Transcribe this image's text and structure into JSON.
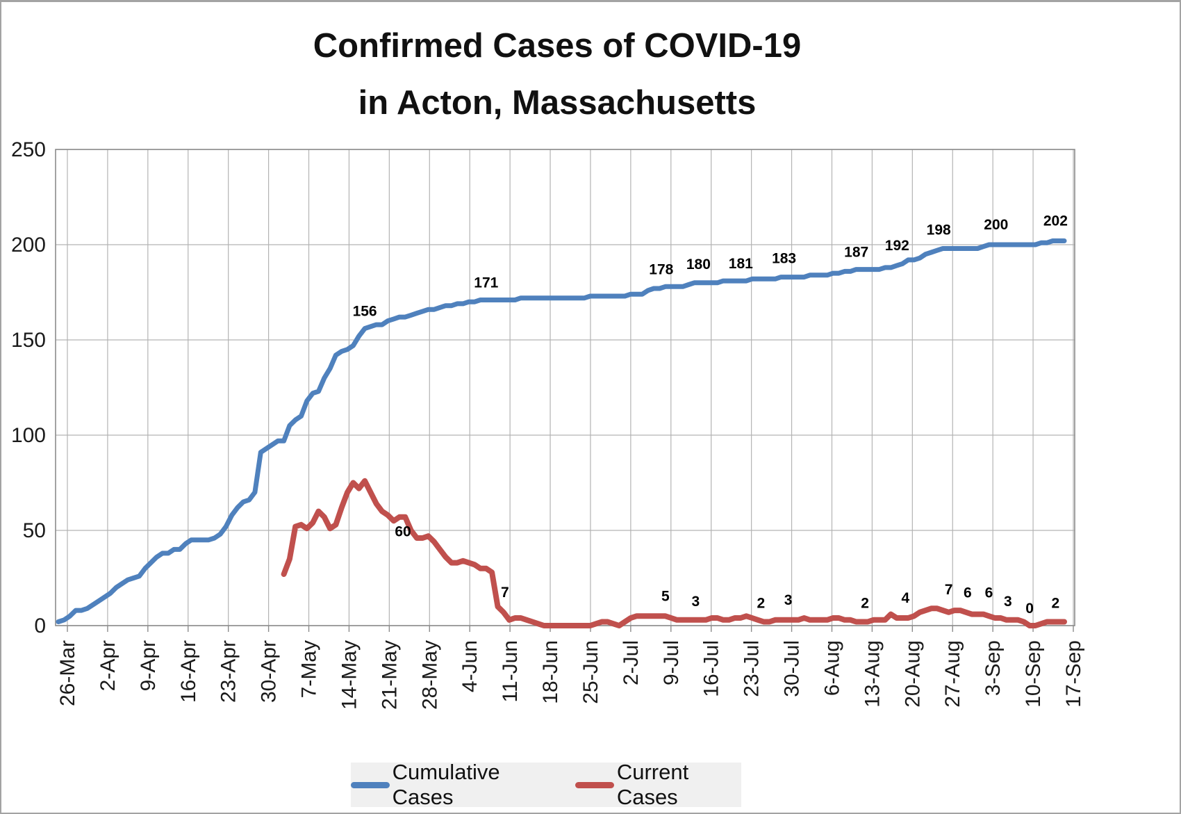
{
  "title_lines": [
    "Confirmed Cases of COVID-19",
    "in Acton, Massachusetts"
  ],
  "colors": {
    "cumulative": "#4F81BD",
    "current": "#C0504D",
    "gridline": "#b3b3b3",
    "plot_border": "#8c8c8c",
    "axis_text": "#1a1a1a",
    "data_label": "#000000",
    "legend_bg": "#f0f0f0"
  },
  "chart_data": {
    "type": "line",
    "title": "Confirmed Cases of COVID-19 in Acton, Massachusetts",
    "xlabel": "",
    "ylabel": "",
    "ylim": [
      0,
      250
    ],
    "y_ticks": [
      0,
      50,
      100,
      150,
      200,
      250
    ],
    "grid": true,
    "legend_position": "bottom",
    "x_interval": "daily",
    "x_start": "26-Mar",
    "x_end": "16-Sep",
    "x_tick_labels": [
      "26-Mar",
      "2-Apr",
      "9-Apr",
      "16-Apr",
      "23-Apr",
      "30-Apr",
      "7-May",
      "14-May",
      "21-May",
      "28-May",
      "4-Jun",
      "11-Jun",
      "18-Jun",
      "25-Jun",
      "2-Jul",
      "9-Jul",
      "16-Jul",
      "23-Jul",
      "30-Jul",
      "6-Aug",
      "13-Aug",
      "20-Aug",
      "27-Aug",
      "3-Sep",
      "10-Sep",
      "17-Sep"
    ],
    "series": [
      {
        "name": "Cumulative Cases",
        "color": "#4F81BD",
        "stroke_width": 7,
        "start_day": 0,
        "values": [
          2,
          3,
          5,
          8,
          8,
          9,
          11,
          13,
          15,
          17,
          20,
          22,
          24,
          25,
          26,
          30,
          33,
          36,
          38,
          38,
          40,
          40,
          43,
          45,
          45,
          45,
          45,
          46,
          48,
          52,
          58,
          62,
          65,
          66,
          70,
          91,
          93,
          95,
          97,
          97,
          105,
          108,
          110,
          118,
          122,
          123,
          130,
          135,
          142,
          144,
          145,
          147,
          152,
          156,
          157,
          158,
          158,
          160,
          161,
          162,
          162,
          163,
          164,
          165,
          166,
          166,
          167,
          168,
          168,
          169,
          169,
          170,
          170,
          171,
          171,
          171,
          171,
          171,
          171,
          171,
          172,
          172,
          172,
          172,
          172,
          172,
          172,
          172,
          172,
          172,
          172,
          172,
          173,
          173,
          173,
          173,
          173,
          173,
          173,
          174,
          174,
          174,
          176,
          177,
          177,
          178,
          178,
          178,
          178,
          179,
          180,
          180,
          180,
          180,
          180,
          181,
          181,
          181,
          181,
          181,
          182,
          182,
          182,
          182,
          182,
          183,
          183,
          183,
          183,
          183,
          184,
          184,
          184,
          184,
          185,
          185,
          186,
          186,
          187,
          187,
          187,
          187,
          187,
          188,
          188,
          189,
          190,
          192,
          192,
          193,
          195,
          196,
          197,
          198,
          198,
          198,
          198,
          198,
          198,
          198,
          199,
          200,
          200,
          200,
          200,
          200,
          200,
          200,
          200,
          200,
          201,
          201,
          202,
          202,
          202
        ],
        "point_labels": [
          {
            "day": 53,
            "value": 156,
            "dx": 0,
            "dy": -18
          },
          {
            "day": 74,
            "value": 171,
            "dx": 0,
            "dy": -18
          },
          {
            "day": 105,
            "value": 178,
            "dx": -6,
            "dy": -18
          },
          {
            "day": 110,
            "value": 180,
            "dx": 6,
            "dy": -20
          },
          {
            "day": 119,
            "value": 181,
            "dx": -8,
            "dy": -18
          },
          {
            "day": 126,
            "value": 183,
            "dx": -4,
            "dy": -20
          },
          {
            "day": 139,
            "value": 187,
            "dx": -8,
            "dy": -18
          },
          {
            "day": 147,
            "value": 192,
            "dx": -16,
            "dy": -14
          },
          {
            "day": 153,
            "value": 198,
            "dx": -6,
            "dy": -20
          },
          {
            "day": 161,
            "value": 200,
            "dx": 10,
            "dy": -22
          },
          {
            "day": 172,
            "value": 202,
            "dx": 4,
            "dy": -22
          }
        ]
      },
      {
        "name": "Current Cases",
        "color": "#C0504D",
        "stroke_width": 8,
        "start_day": 39,
        "values": [
          27,
          35,
          52,
          53,
          51,
          54,
          60,
          57,
          51,
          53,
          62,
          70,
          75,
          72,
          76,
          70,
          64,
          60,
          58,
          55,
          57,
          57,
          50,
          46,
          46,
          47,
          44,
          40,
          36,
          33,
          33,
          34,
          33,
          32,
          30,
          30,
          28,
          10,
          7,
          3,
          4,
          4,
          3,
          2,
          1,
          0,
          0,
          0,
          0,
          0,
          0,
          0,
          0,
          0,
          1,
          2,
          2,
          1,
          0,
          2,
          4,
          5,
          5,
          5,
          5,
          5,
          5,
          4,
          3,
          3,
          3,
          3,
          3,
          3,
          4,
          4,
          3,
          3,
          4,
          4,
          5,
          4,
          3,
          2,
          2,
          3,
          3,
          3,
          3,
          3,
          4,
          3,
          3,
          3,
          3,
          4,
          4,
          3,
          3,
          2,
          2,
          2,
          3,
          3,
          3,
          6,
          4,
          4,
          4,
          5,
          7,
          8,
          9,
          9,
          8,
          7,
          8,
          8,
          7,
          6,
          6,
          6,
          5,
          4,
          4,
          3,
          3,
          3,
          2,
          0,
          0,
          1,
          2,
          2,
          2,
          2
        ],
        "point_labels": [
          {
            "day": 56,
            "value": 60,
            "dx": 30,
            "dy": 36
          },
          {
            "day": 77,
            "value": 7,
            "dx": 2,
            "dy": -22
          },
          {
            "day": 105,
            "value": 5,
            "dx": 0,
            "dy": -22
          },
          {
            "day": 110,
            "value": 3,
            "dx": 2,
            "dy": -20
          },
          {
            "day": 122,
            "value": 2,
            "dx": -4,
            "dy": -20
          },
          {
            "day": 126,
            "value": 3,
            "dx": 2,
            "dy": -22
          },
          {
            "day": 140,
            "value": 2,
            "dx": -4,
            "dy": -20
          },
          {
            "day": 147,
            "value": 4,
            "dx": -4,
            "dy": -22
          },
          {
            "day": 154,
            "value": 7,
            "dx": 0,
            "dy": -26
          },
          {
            "day": 158,
            "value": 6,
            "dx": -6,
            "dy": -24
          },
          {
            "day": 160,
            "value": 6,
            "dx": 8,
            "dy": -24
          },
          {
            "day": 164,
            "value": 3,
            "dx": 2,
            "dy": -20
          },
          {
            "day": 168,
            "value": 0,
            "dx": 0,
            "dy": -18
          },
          {
            "day": 172,
            "value": 2,
            "dx": 4,
            "dy": -20
          }
        ]
      }
    ]
  },
  "legend": {
    "items": [
      {
        "label": "Cumulative Cases"
      },
      {
        "label": "Current Cases"
      }
    ]
  }
}
